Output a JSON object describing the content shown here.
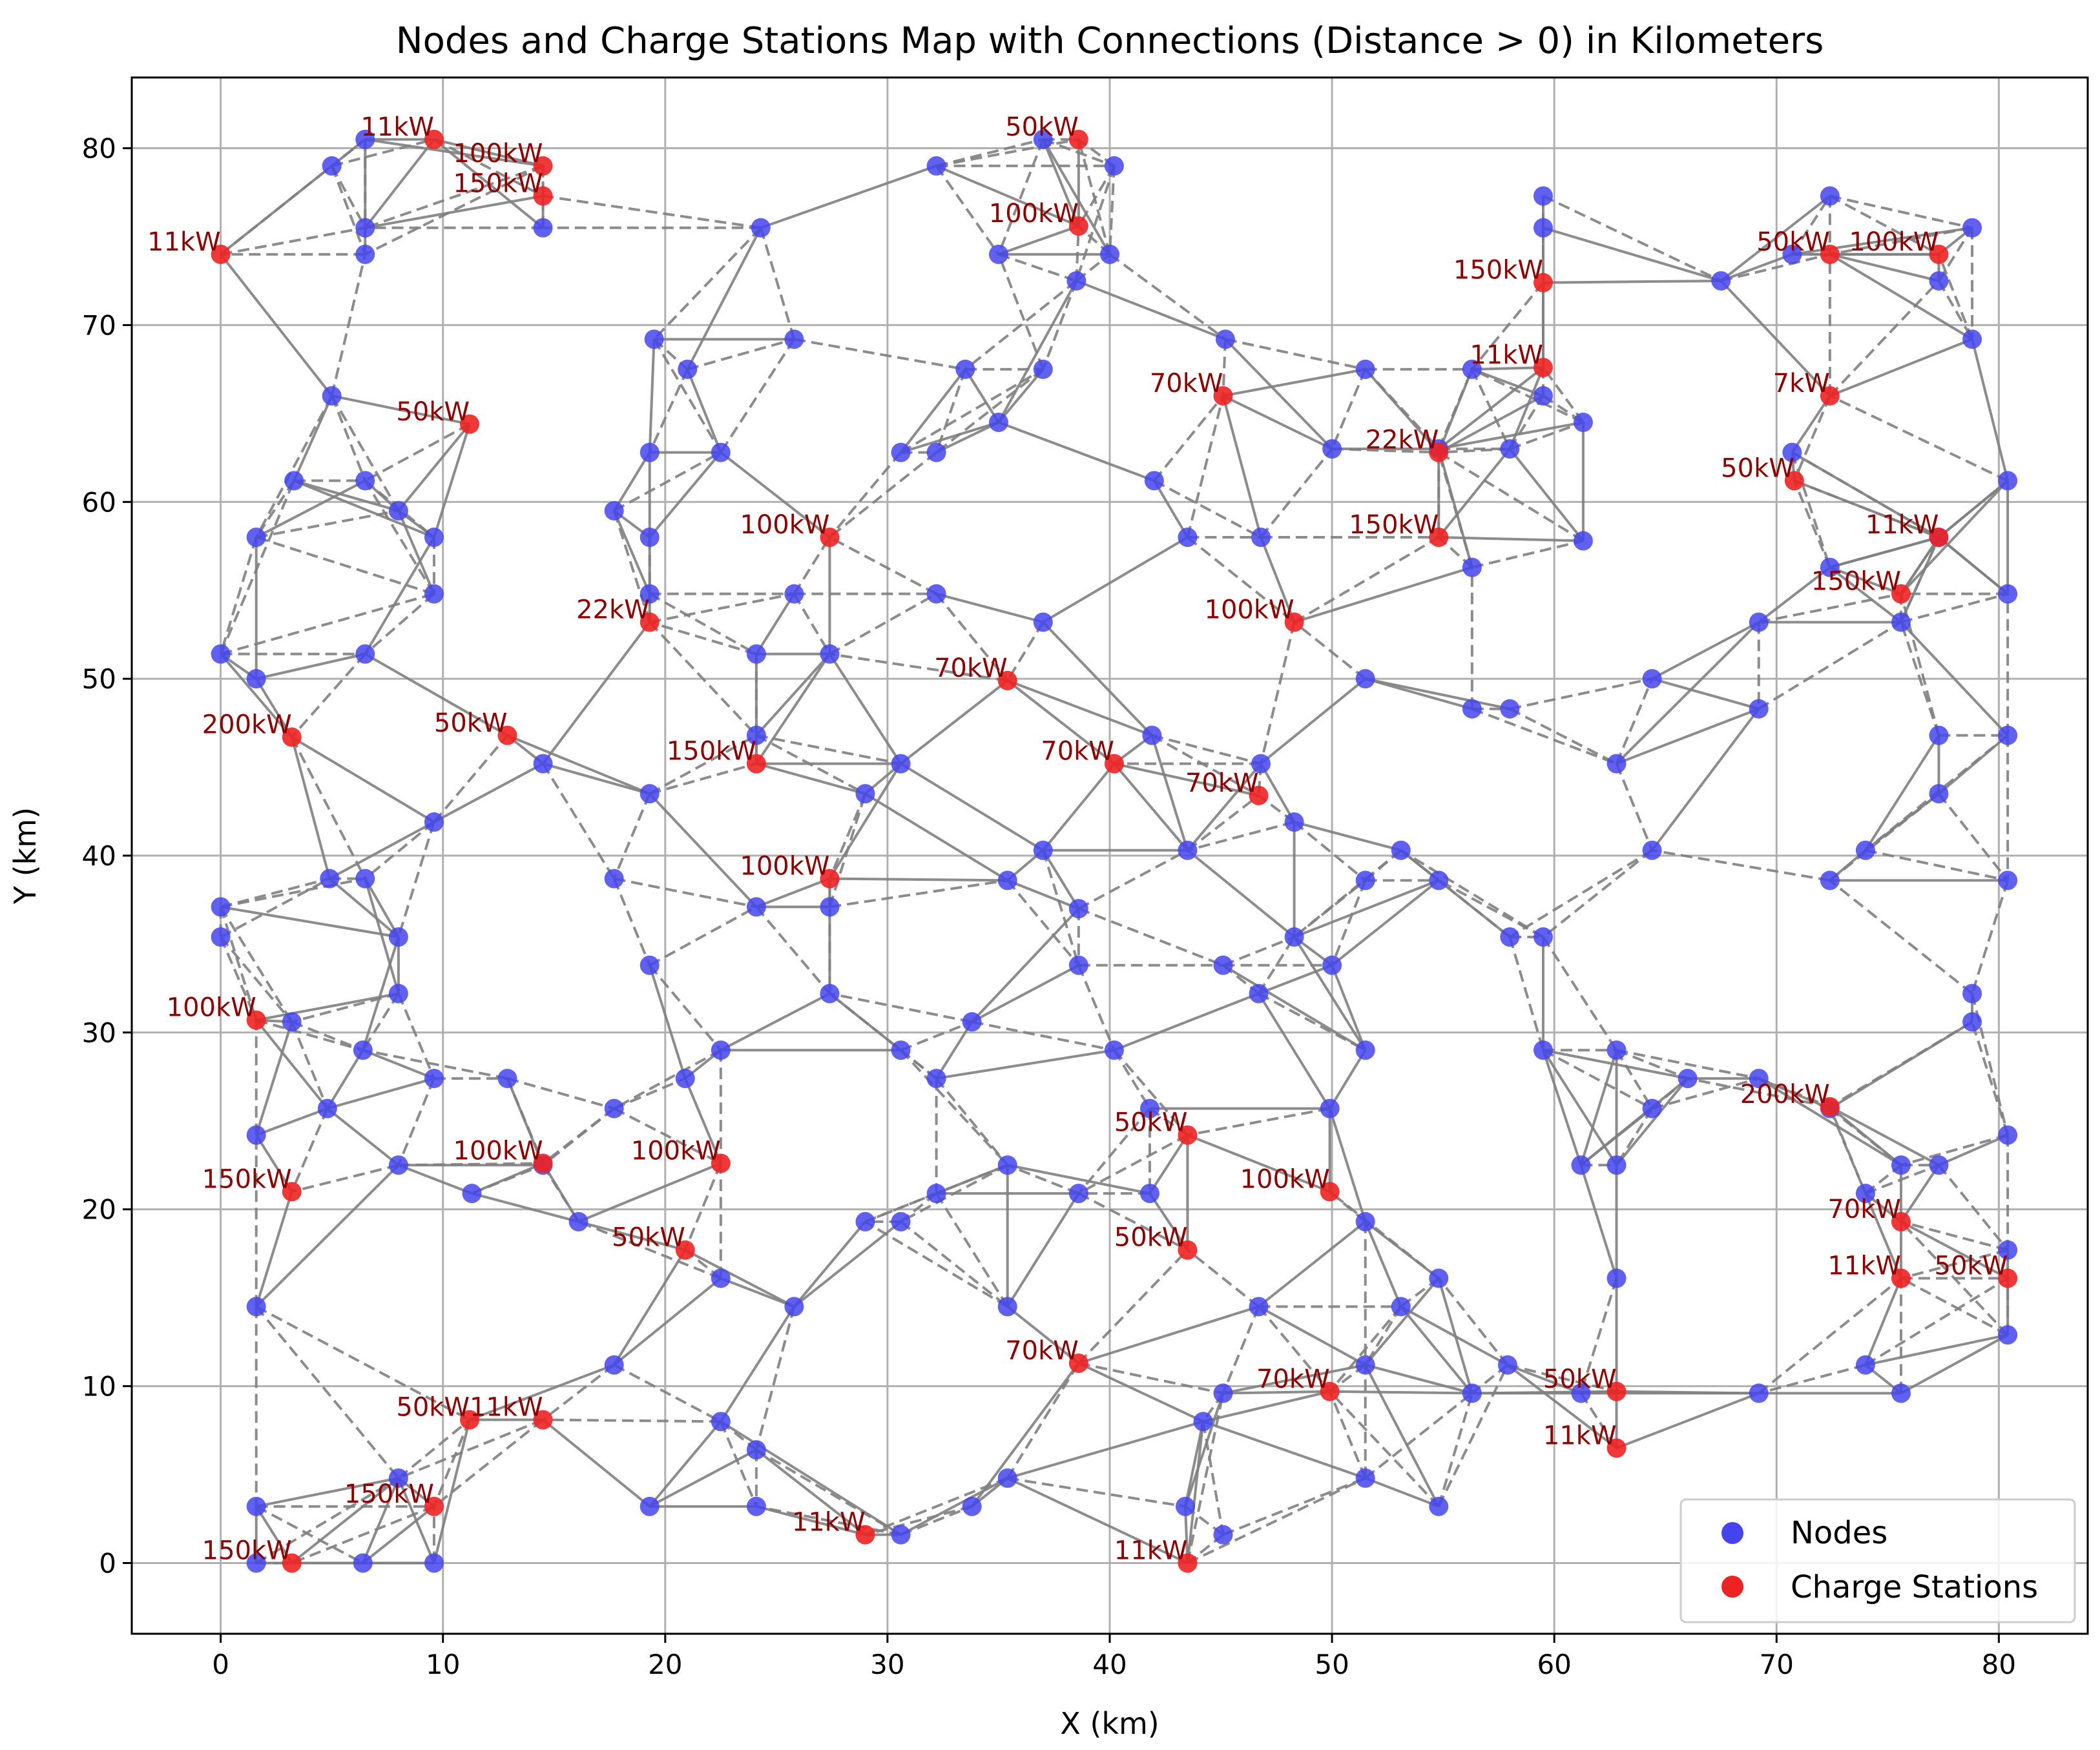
{
  "chart_data": {
    "type": "scatter",
    "title": "Nodes and Charge Stations Map with Connections (Distance > 0) in Kilometers",
    "xlabel": "X (km)",
    "ylabel": "Y (km)",
    "xlim": [
      -4,
      84
    ],
    "ylim": [
      -4,
      84
    ],
    "xticks": [
      0,
      10,
      20,
      30,
      40,
      50,
      60,
      70,
      80
    ],
    "yticks": [
      0,
      10,
      20,
      30,
      40,
      50,
      60,
      70,
      80
    ],
    "grid": true,
    "legend_position": "bottom-right",
    "colors": {
      "nodes": "#4444ee",
      "stations": "#ee2222",
      "edges": "#808080",
      "station_label": "#8b0000"
    },
    "series": [
      {
        "name": "Nodes",
        "points": [
          [
            5,
            79
          ],
          [
            6.5,
            80.5
          ],
          [
            6.5,
            75.5
          ],
          [
            6.5,
            74
          ],
          [
            14.5,
            75.5
          ],
          [
            19.5,
            69.2
          ],
          [
            21,
            67.5
          ],
          [
            24.3,
            75.5
          ],
          [
            25.8,
            69.2
          ],
          [
            32.2,
            79
          ],
          [
            37,
            80.5
          ],
          [
            40.2,
            79
          ],
          [
            35,
            74
          ],
          [
            38.5,
            72.5
          ],
          [
            40,
            74
          ],
          [
            33.5,
            67.5
          ],
          [
            35,
            64.5
          ],
          [
            37,
            67.5
          ],
          [
            45.2,
            69.2
          ],
          [
            42,
            61.2
          ],
          [
            43.5,
            58
          ],
          [
            46.8,
            58
          ],
          [
            51.5,
            67.5
          ],
          [
            50,
            63
          ],
          [
            54.8,
            63
          ],
          [
            56.3,
            67.5
          ],
          [
            58,
            63
          ],
          [
            59.5,
            77.3
          ],
          [
            59.5,
            75.5
          ],
          [
            59.5,
            66
          ],
          [
            61.3,
            64.5
          ],
          [
            67.5,
            72.5
          ],
          [
            70.7,
            74
          ],
          [
            72.4,
            77.3
          ],
          [
            77.3,
            72.5
          ],
          [
            78.8,
            75.5
          ],
          [
            78.8,
            69.2
          ],
          [
            70.7,
            62.8
          ],
          [
            80.4,
            61.2
          ],
          [
            77.3,
            58
          ],
          [
            72.4,
            56.3
          ],
          [
            75.6,
            53.2
          ],
          [
            69.2,
            53.2
          ],
          [
            80.4,
            54.8
          ],
          [
            69.2,
            48.3
          ],
          [
            77.3,
            46.8
          ],
          [
            80.4,
            46.8
          ],
          [
            74,
            40.3
          ],
          [
            77.3,
            43.5
          ],
          [
            72.4,
            38.6
          ],
          [
            80.4,
            38.6
          ],
          [
            5,
            66
          ],
          [
            3.3,
            61.2
          ],
          [
            1.6,
            58
          ],
          [
            6.5,
            61.2
          ],
          [
            8,
            59.5
          ],
          [
            9.6,
            58
          ],
          [
            9.6,
            54.8
          ],
          [
            0,
            51.4
          ],
          [
            1.6,
            50
          ],
          [
            6.5,
            51.4
          ],
          [
            17.7,
            59.5
          ],
          [
            19.3,
            62.8
          ],
          [
            19.3,
            58
          ],
          [
            22.5,
            62.8
          ],
          [
            19.3,
            54.8
          ],
          [
            14.5,
            45.2
          ],
          [
            9.6,
            41.9
          ],
          [
            19.3,
            43.5
          ],
          [
            24.1,
            51.4
          ],
          [
            25.8,
            54.8
          ],
          [
            27.4,
            51.4
          ],
          [
            30.6,
            62.8
          ],
          [
            32.2,
            62.8
          ],
          [
            32.2,
            54.8
          ],
          [
            37,
            53.2
          ],
          [
            24.1,
            46.8
          ],
          [
            30.6,
            45.2
          ],
          [
            29,
            43.5
          ],
          [
            41.9,
            46.8
          ],
          [
            46.8,
            45.2
          ],
          [
            48.3,
            41.9
          ],
          [
            51.5,
            50
          ],
          [
            56.3,
            48.3
          ],
          [
            58,
            48.3
          ],
          [
            56.3,
            56.3
          ],
          [
            61.3,
            57.8
          ],
          [
            62.8,
            45.2
          ],
          [
            64.4,
            50
          ],
          [
            64.4,
            40.3
          ],
          [
            58,
            35.4
          ],
          [
            59.5,
            35.4
          ],
          [
            0,
            37.1
          ],
          [
            0,
            35.4
          ],
          [
            4.9,
            38.7
          ],
          [
            6.5,
            38.7
          ],
          [
            8,
            35.4
          ],
          [
            8,
            32.2
          ],
          [
            3.2,
            30.6
          ],
          [
            6.4,
            29
          ],
          [
            9.6,
            27.4
          ],
          [
            12.9,
            27.4
          ],
          [
            1.6,
            24.2
          ],
          [
            4.8,
            25.7
          ],
          [
            8,
            22.5
          ],
          [
            11.3,
            20.9
          ],
          [
            17.7,
            25.7
          ],
          [
            14.5,
            22.5
          ],
          [
            16.1,
            19.3
          ],
          [
            17.7,
            38.7
          ],
          [
            19.3,
            33.8
          ],
          [
            24.1,
            37.1
          ],
          [
            27.4,
            37.1
          ],
          [
            27.4,
            32.2
          ],
          [
            22.5,
            29
          ],
          [
            20.9,
            27.4
          ],
          [
            30.6,
            29
          ],
          [
            32.2,
            27.4
          ],
          [
            33.8,
            30.6
          ],
          [
            35.4,
            38.6
          ],
          [
            37,
            40.3
          ],
          [
            38.6,
            37
          ],
          [
            38.6,
            33.8
          ],
          [
            40.2,
            29
          ],
          [
            41.8,
            25.7
          ],
          [
            43.5,
            40.3
          ],
          [
            45.1,
            33.8
          ],
          [
            46.7,
            32.2
          ],
          [
            48.3,
            35.4
          ],
          [
            50,
            33.8
          ],
          [
            51.5,
            38.6
          ],
          [
            53.1,
            40.3
          ],
          [
            54.8,
            38.6
          ],
          [
            51.5,
            29
          ],
          [
            49.9,
            25.7
          ],
          [
            59.5,
            29
          ],
          [
            62.8,
            29
          ],
          [
            64.4,
            25.7
          ],
          [
            66,
            27.4
          ],
          [
            69.2,
            27.4
          ],
          [
            72.4,
            25.7
          ],
          [
            74,
            20.9
          ],
          [
            75.6,
            22.5
          ],
          [
            77.3,
            22.5
          ],
          [
            80.4,
            24.2
          ],
          [
            80.4,
            17.7
          ],
          [
            80.4,
            12.9
          ],
          [
            78.8,
            30.6
          ],
          [
            78.8,
            32.2
          ],
          [
            74,
            11.2
          ],
          [
            75.6,
            9.6
          ],
          [
            69.2,
            9.6
          ],
          [
            61.2,
            22.5
          ],
          [
            62.8,
            22.5
          ],
          [
            62.8,
            16.1
          ],
          [
            61.2,
            9.6
          ],
          [
            57.9,
            11.2
          ],
          [
            56.3,
            9.6
          ],
          [
            54.8,
            16.1
          ],
          [
            53.1,
            14.5
          ],
          [
            51.5,
            11.2
          ],
          [
            51.5,
            19.3
          ],
          [
            46.7,
            14.5
          ],
          [
            45.1,
            9.6
          ],
          [
            44.2,
            8
          ],
          [
            43.4,
            3.2
          ],
          [
            45.1,
            1.6
          ],
          [
            51.5,
            4.8
          ],
          [
            54.8,
            3.2
          ],
          [
            41.8,
            20.9
          ],
          [
            38.6,
            20.9
          ],
          [
            35.4,
            22.5
          ],
          [
            32.2,
            20.9
          ],
          [
            30.6,
            19.3
          ],
          [
            29,
            19.3
          ],
          [
            35.4,
            14.5
          ],
          [
            25.8,
            14.5
          ],
          [
            22.5,
            16.1
          ],
          [
            17.7,
            11.2
          ],
          [
            22.5,
            8
          ],
          [
            24.1,
            6.4
          ],
          [
            24.1,
            3.2
          ],
          [
            19.3,
            3.2
          ],
          [
            30.6,
            1.6
          ],
          [
            33.8,
            3.2
          ],
          [
            35.4,
            4.8
          ],
          [
            1.6,
            14.5
          ],
          [
            1.6,
            3.2
          ],
          [
            1.6,
            0
          ],
          [
            6.4,
            0
          ],
          [
            8,
            4.8
          ],
          [
            9.6,
            0
          ]
        ]
      },
      {
        "name": "Charge Stations",
        "points": [
          {
            "x": 0,
            "y": 74,
            "label": "11kW"
          },
          {
            "x": 9.6,
            "y": 80.5,
            "label": "11kW"
          },
          {
            "x": 14.5,
            "y": 79,
            "label": "100kW"
          },
          {
            "x": 14.5,
            "y": 77.3,
            "label": "150kW"
          },
          {
            "x": 11.2,
            "y": 64.4,
            "label": "50kW"
          },
          {
            "x": 38.6,
            "y": 80.5,
            "label": "50kW"
          },
          {
            "x": 38.6,
            "y": 75.6,
            "label": "100kW"
          },
          {
            "x": 45.1,
            "y": 66,
            "label": "70kW"
          },
          {
            "x": 59.5,
            "y": 72.4,
            "label": "150kW"
          },
          {
            "x": 59.5,
            "y": 67.6,
            "label": "11kW"
          },
          {
            "x": 54.8,
            "y": 62.8,
            "label": "22kW"
          },
          {
            "x": 54.8,
            "y": 58,
            "label": "150kW"
          },
          {
            "x": 48.3,
            "y": 53.2,
            "label": "100kW"
          },
          {
            "x": 27.4,
            "y": 58,
            "label": "100kW"
          },
          {
            "x": 19.3,
            "y": 53.2,
            "label": "22kW"
          },
          {
            "x": 35.4,
            "y": 49.9,
            "label": "70kW"
          },
          {
            "x": 24.1,
            "y": 45.2,
            "label": "150kW"
          },
          {
            "x": 12.9,
            "y": 46.8,
            "label": "50kW"
          },
          {
            "x": 3.2,
            "y": 46.7,
            "label": "200kW"
          },
          {
            "x": 40.2,
            "y": 45.2,
            "label": "70kW"
          },
          {
            "x": 46.7,
            "y": 43.4,
            "label": "70kW"
          },
          {
            "x": 27.4,
            "y": 38.7,
            "label": "100kW"
          },
          {
            "x": 72.4,
            "y": 74,
            "label": "50kW"
          },
          {
            "x": 77.3,
            "y": 74,
            "label": "100kW"
          },
          {
            "x": 72.4,
            "y": 66,
            "label": "7kW"
          },
          {
            "x": 70.8,
            "y": 61.2,
            "label": "50kW"
          },
          {
            "x": 77.3,
            "y": 58,
            "label": "11kW"
          },
          {
            "x": 75.6,
            "y": 54.8,
            "label": "150kW"
          },
          {
            "x": 1.6,
            "y": 30.7,
            "label": "100kW"
          },
          {
            "x": 3.2,
            "y": 21,
            "label": "150kW"
          },
          {
            "x": 14.5,
            "y": 22.6,
            "label": "100kW"
          },
          {
            "x": 22.5,
            "y": 22.6,
            "label": "100kW"
          },
          {
            "x": 20.9,
            "y": 17.7,
            "label": "50kW"
          },
          {
            "x": 43.5,
            "y": 24.2,
            "label": "50kW"
          },
          {
            "x": 49.9,
            "y": 21,
            "label": "100kW"
          },
          {
            "x": 43.5,
            "y": 17.7,
            "label": "50kW"
          },
          {
            "x": 72.4,
            "y": 25.8,
            "label": "200kW"
          },
          {
            "x": 75.6,
            "y": 19.3,
            "label": "70kW"
          },
          {
            "x": 75.6,
            "y": 16.1,
            "label": "11kW"
          },
          {
            "x": 80.4,
            "y": 16.1,
            "label": "50kW"
          },
          {
            "x": 38.6,
            "y": 11.3,
            "label": "70kW"
          },
          {
            "x": 49.9,
            "y": 9.7,
            "label": "70kW"
          },
          {
            "x": 62.8,
            "y": 9.7,
            "label": "50kW"
          },
          {
            "x": 62.8,
            "y": 6.5,
            "label": "11kW"
          },
          {
            "x": 11.2,
            "y": 8.1,
            "label": "50kW"
          },
          {
            "x": 14.5,
            "y": 8.1,
            "label": "11kW"
          },
          {
            "x": 9.6,
            "y": 3.2,
            "label": "150kW"
          },
          {
            "x": 3.2,
            "y": 0,
            "label": "150kW"
          },
          {
            "x": 29,
            "y": 1.6,
            "label": "11kW"
          },
          {
            "x": 43.5,
            "y": 0,
            "label": "11kW"
          }
        ]
      }
    ],
    "edge_rule": "Connections drawn as solid and dashed gray lines between nearby nodes and stations (distance > 0)"
  }
}
